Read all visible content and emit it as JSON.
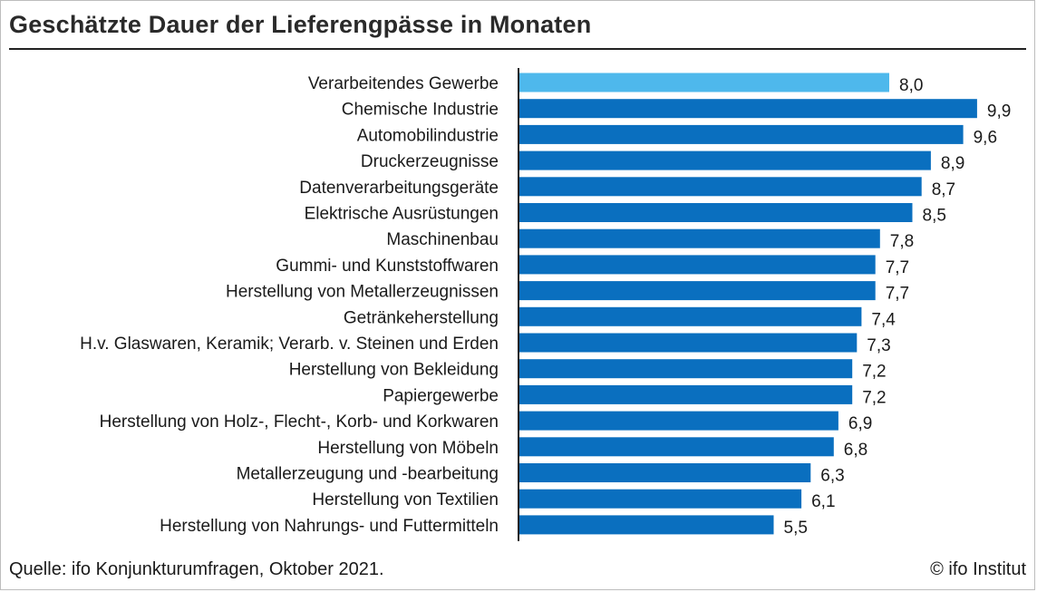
{
  "header": {
    "title": "Geschätzte Dauer der Lieferengpässe in Monaten"
  },
  "footer": {
    "source": "Quelle: ifo Konjunkturumfragen, Oktober 2021.",
    "copyright": "© ifo Institut"
  },
  "colors": {
    "highlight_bar": "#4eb8ec",
    "bar": "#0a6fbf",
    "axis": "#222222"
  },
  "chart_data": {
    "type": "bar",
    "orientation": "horizontal",
    "categories": [
      "Verarbeitendes Gewerbe",
      "Chemische Industrie",
      "Automobilindustrie",
      "Druckerzeugnisse ",
      "Datenverarbeitungsgeräte",
      "Elektrische Ausrüstungen",
      "Maschinenbau",
      "Gummi- und Kunststoffwaren",
      "Herstellung von Metallerzeugnissen",
      "Getränkeherstellung",
      "H.v. Glaswaren, Keramik; Verarb. v. Steinen und Erden",
      "Herstellung von Bekleidung",
      "Papiergewerbe",
      "Herstellung von Holz-, Flecht-, Korb- und Korkwaren",
      "Herstellung von Möbeln",
      "Metallerzeugung und -bearbeitung",
      "Herstellung von Textilien",
      "Herstellung von Nahrungs- und Futtermitteln"
    ],
    "values": [
      8.0,
      9.9,
      9.6,
      8.9,
      8.7,
      8.5,
      7.8,
      7.7,
      7.7,
      7.4,
      7.3,
      7.2,
      7.2,
      6.9,
      6.8,
      6.3,
      6.1,
      5.5
    ],
    "value_labels": [
      "8,0",
      "9,9",
      "9,6",
      "8,9",
      "8,7",
      "8,5",
      "7,8",
      "7,7",
      "7,7",
      "7,4",
      "7,3",
      "7,2",
      "7,2",
      "6,9",
      "6,8",
      "6,3",
      "6,1",
      "5,5"
    ],
    "highlight_index": 0,
    "xlim": [
      0,
      10
    ],
    "grid": false,
    "legend": "none"
  }
}
